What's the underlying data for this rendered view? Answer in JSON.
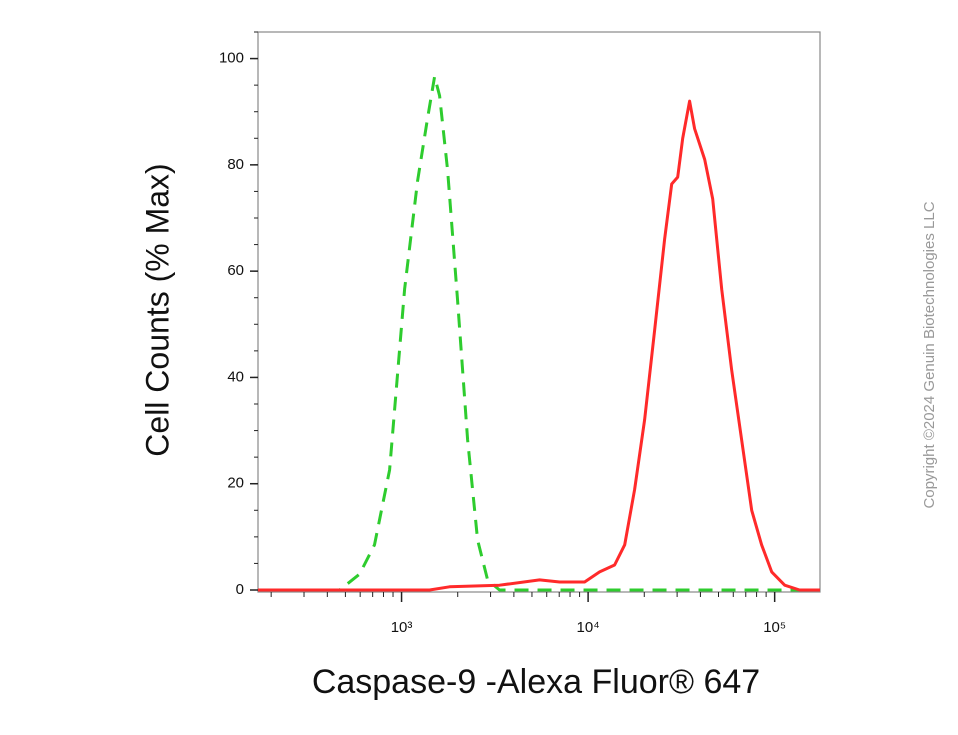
{
  "chart_data": {
    "type": "line",
    "x_label": "Caspase-9 -Alexa Fluor® 647",
    "y_label": "Cell Counts (% Max)",
    "copyright": "Copyright ©2024 Genuin Biotechnologies LLC",
    "xscale": "log",
    "xlim": [
      170,
      175000
    ],
    "ylim": [
      0,
      105
    ],
    "xticks": [
      {
        "value": 1000,
        "label": "10³"
      },
      {
        "value": 10000,
        "label": "10⁴"
      },
      {
        "value": 100000,
        "label": "10⁵"
      }
    ],
    "yticks": [
      0,
      20,
      40,
      60,
      80,
      100
    ],
    "series": [
      {
        "color": "#2ecc2e",
        "dashed": true,
        "x": [
          170,
          466,
          596,
          716,
          863,
          1038,
          1219,
          1377,
          1503,
          1600,
          1765,
          1995,
          2259,
          2557,
          2891,
          3350,
          175000
        ],
        "values": [
          0,
          0,
          3,
          8.5,
          22.6,
          56.6,
          77,
          88.7,
          96.6,
          93,
          79,
          54.7,
          28.3,
          9.4,
          1.9,
          0,
          0
        ]
      },
      {
        "color": "#ff2a2a",
        "dashed": false,
        "x": [
          170,
          1413,
          1808,
          3350,
          5496,
          7031,
          9572,
          11530,
          13870,
          15700,
          17750,
          20090,
          22750,
          25700,
          28050,
          30200,
          32140,
          35000,
          37240,
          42170,
          46560,
          52000,
          58750,
          66530,
          75300,
          85100,
          96400,
          113200,
          136100,
          175000
        ],
        "values": [
          0,
          0,
          0.6,
          0.9,
          1.9,
          1.5,
          1.5,
          3.4,
          4.7,
          8.5,
          18.9,
          32,
          49,
          66,
          76.4,
          77.7,
          85,
          92,
          86.8,
          81,
          73.6,
          56.6,
          41.5,
          28.3,
          15,
          8.5,
          3.4,
          0.9,
          0,
          0
        ]
      }
    ]
  }
}
